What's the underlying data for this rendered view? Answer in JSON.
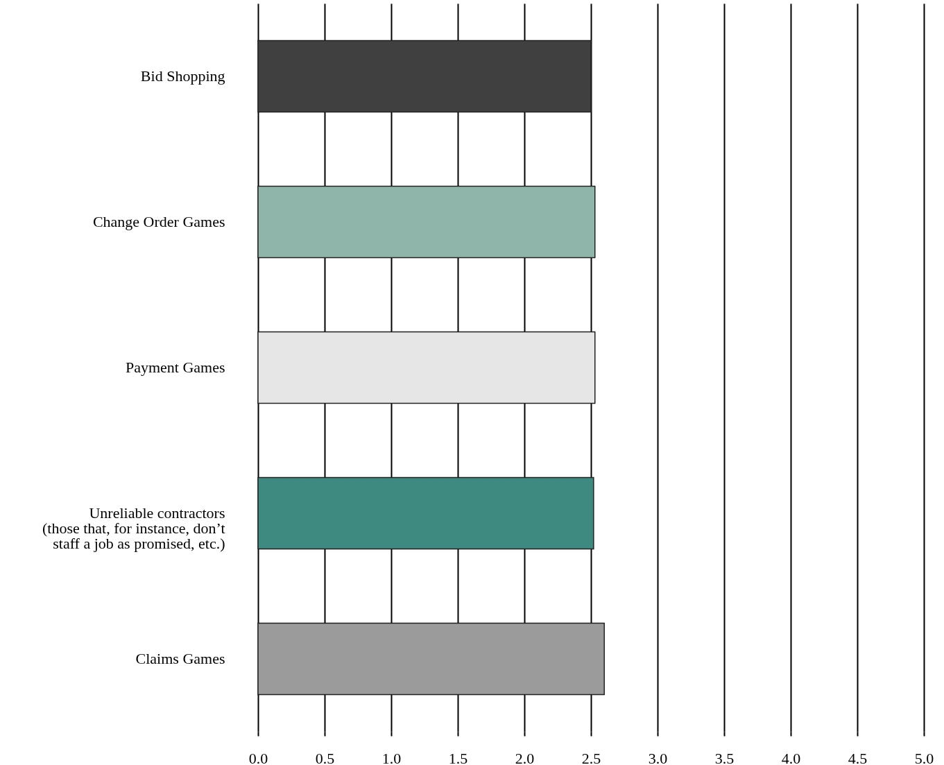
{
  "chart_data": {
    "type": "bar",
    "orientation": "horizontal",
    "categories": [
      "Bid Shopping",
      "Change Order Games",
      "Payment Games",
      "Unreliable contractors\n(those that, for instance, don’t\nstaff a job as promised, etc.)",
      "Claims Games"
    ],
    "values": [
      2.5,
      2.53,
      2.53,
      2.52,
      2.6
    ],
    "colors": [
      "#404040",
      "#8fb5ab",
      "#e6e6e6",
      "#3f8a80",
      "#9b9b9b"
    ],
    "xlim": [
      0,
      5
    ],
    "xticks": [
      {
        "value": 0,
        "label": "0.0"
      },
      {
        "value": 0.5,
        "label": "0.5"
      },
      {
        "value": 1,
        "label": "1.0"
      },
      {
        "value": 1.5,
        "label": "1.5"
      },
      {
        "value": 2,
        "label": "2.0"
      },
      {
        "value": 2.5,
        "label": "2.5"
      },
      {
        "value": 3,
        "label": "3.0"
      },
      {
        "value": 3.5,
        "label": "3.5"
      },
      {
        "value": 4,
        "label": "4.0"
      },
      {
        "value": 4.5,
        "label": "4.5"
      },
      {
        "value": 5,
        "label": "5.0"
      }
    ],
    "grid": "x"
  }
}
